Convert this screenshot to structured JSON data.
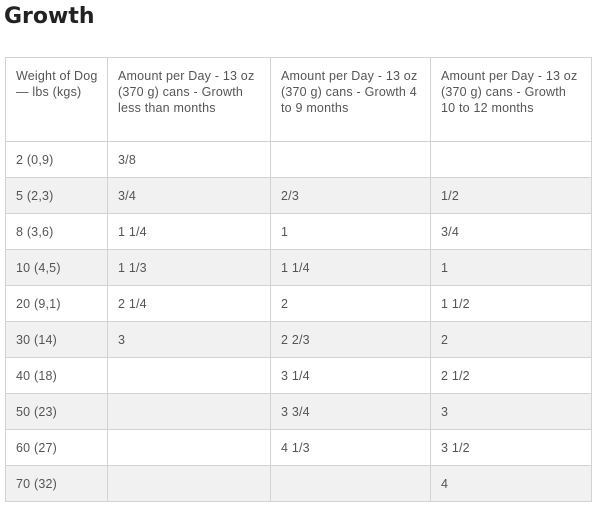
{
  "page": {
    "title": "Growth"
  },
  "table": {
    "headers": [
      "Weight of Dog — lbs (kgs)",
      "Amount per Day - 13 oz (370 g) cans - Growth less than months",
      "Amount per Day - 13 oz (370 g) cans - Growth 4 to 9 months",
      "Amount per Day - 13 oz (370 g) cans - Growth 10 to 12 months"
    ],
    "rows": [
      [
        "2 (0,9)",
        "3/8",
        "",
        ""
      ],
      [
        "5 (2,3)",
        "3/4",
        "2/3",
        "1/2"
      ],
      [
        "8 (3,6)",
        "1 1/4",
        "1",
        "3/4"
      ],
      [
        "10 (4,5)",
        "1 1/3",
        "1 1/4",
        "1"
      ],
      [
        "20 (9,1)",
        "2 1/4",
        "2",
        "1 1/2"
      ],
      [
        "30 (14)",
        "3",
        "2 2/3",
        "2"
      ],
      [
        "40 (18)",
        "",
        "3 1/4",
        "2 1/2"
      ],
      [
        "50 (23)",
        "",
        "3 3/4",
        "3"
      ],
      [
        "60 (27)",
        "",
        "4 1/3",
        "3 1/2"
      ],
      [
        "70 (32)",
        "",
        "",
        "4"
      ]
    ]
  }
}
